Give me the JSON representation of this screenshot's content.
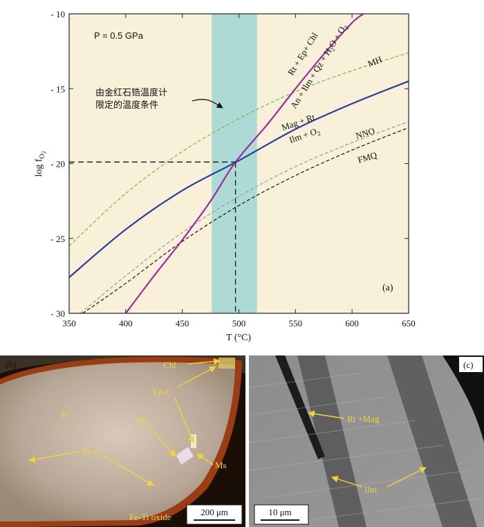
{
  "chart_data": {
    "type": "line",
    "panel_label": "(a)",
    "pressure_label": "P = 0.5 GPa",
    "xlabel_main": "T (",
    "xlabel_unit": "°C)",
    "ylabel_main": "log f",
    "ylabel_sub": "O",
    "ylabel_subsub": "2",
    "xlim": [
      350,
      650
    ],
    "ylim": [
      -30,
      -10
    ],
    "xticks": [
      350,
      400,
      450,
      500,
      550,
      600,
      650
    ],
    "xtick_labels": [
      "350",
      "400",
      "450",
      "500",
      "550",
      "600",
      "650"
    ],
    "yticks": [
      -10,
      -15,
      -20,
      -25,
      -30
    ],
    "ytick_labels": [
      "- 10",
      "- 15",
      "- 20",
      "- 25",
      "- 30"
    ],
    "temperature_band": [
      476,
      516
    ],
    "intersection": {
      "x": 497,
      "y": -19.9
    },
    "annotation_line1": "由金红石锆温度计",
    "annotation_line2": "限定的温度条件",
    "series": [
      {
        "name": "MH",
        "color": "#6cbf3a",
        "dash": true,
        "x": [
          350,
          400,
          450,
          500,
          550,
          600,
          650
        ],
        "y": [
          -25.5,
          -22.0,
          -19.2,
          -17.0,
          -15.2,
          -13.8,
          -12.6
        ]
      },
      {
        "name": "Mag + Rt / Ilm + O2",
        "color": "#2a3d9a",
        "dash": false,
        "x": [
          350,
          400,
          450,
          500,
          550,
          600,
          650
        ],
        "y": [
          -27.6,
          -24.4,
          -21.8,
          -19.8,
          -17.7,
          -16.0,
          -14.5
        ]
      },
      {
        "name": "NNO",
        "color": "#999999",
        "dash": true,
        "x": [
          360,
          400,
          450,
          500,
          550,
          600,
          650
        ],
        "y": [
          -30.0,
          -27.5,
          -24.6,
          -22.2,
          -20.2,
          -18.6,
          -17.2
        ]
      },
      {
        "name": "FMQ",
        "color": "#111111",
        "dash": true,
        "x": [
          362,
          400,
          450,
          500,
          550,
          600,
          650
        ],
        "y": [
          -30.0,
          -28.0,
          -25.2,
          -22.8,
          -20.8,
          -19.1,
          -17.6
        ]
      },
      {
        "name": "Rt + Ep + Chl / An + Ilm + Qz + H2O + O2",
        "color": "#9a2c9e",
        "dash": false,
        "x": [
          400,
          425,
          450,
          475,
          497,
          525,
          550,
          575,
          600,
          610
        ],
        "y": [
          -30.0,
          -27.5,
          -25.1,
          -22.5,
          -19.9,
          -17.4,
          -15.0,
          -12.7,
          -10.6,
          -10.0
        ]
      }
    ],
    "curve_labels": {
      "mh": "MH",
      "mag_rt": "Mag + Rt",
      "ilm_o2_main": "Ilm + O",
      "ilm_o2_sub": "2",
      "nno": "NNO",
      "fmq": "FMQ",
      "rt_ep_chl": "Rt + Ep+ Chl",
      "an_assemblage_main": "An + Ilm + Qz + H",
      "an_assemblage_sub1": "2",
      "an_assemblage_mid": "O + O",
      "an_assemblage_sub2": "2"
    }
  },
  "panel_b": {
    "label": "(b)",
    "labels": {
      "chl": "Chl",
      "ep_c": "Ep-C",
      "pl": "Pl",
      "ms1": "Ms",
      "rt_c": "Rt-C",
      "ms2": "Ms",
      "fe_ti_oxide": "Fe-Ti oxide"
    },
    "scale_bar": "200 μm"
  },
  "panel_c": {
    "label": "(c)",
    "labels": {
      "rt_mag": "Rt +Mag",
      "ilm": "Ilm"
    },
    "scale_bar": "10 μm"
  },
  "colors": {
    "plot_background": "#f8f0d8",
    "band": "#aedad6",
    "label_yellow": "#f2d33c"
  }
}
